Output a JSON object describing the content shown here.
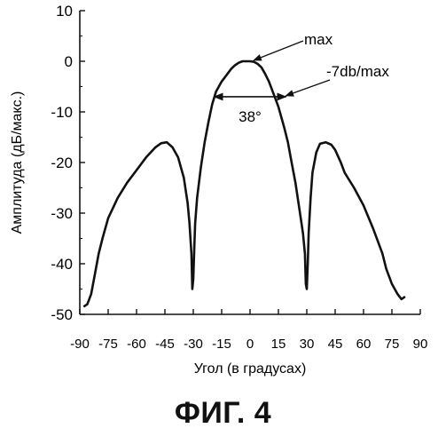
{
  "figure_label": "ФИГ. 4",
  "chart_data": {
    "type": "line",
    "xlabel": "Угол (в градусах)",
    "ylabel": "Амплитуда (дБ/макс.)",
    "xlim": [
      -90,
      90
    ],
    "ylim": [
      -50,
      10
    ],
    "xticks": [
      -90,
      -75,
      -60,
      -45,
      -30,
      -15,
      0,
      15,
      30,
      45,
      60,
      75,
      90
    ],
    "yticks": [
      10,
      0,
      -10,
      -20,
      -30,
      -40,
      -50
    ],
    "grid": false,
    "series": [
      {
        "x": [
          -88,
          -86,
          -84,
          -82,
          -80,
          -78,
          -75,
          -70,
          -65,
          -60,
          -55,
          -50,
          -47,
          -44,
          -41,
          -38,
          -35,
          -33,
          -32,
          -31,
          -30.5,
          -30,
          -29.5,
          -29,
          -28,
          -26,
          -24,
          -22,
          -20,
          -18,
          -15,
          -12,
          -10,
          -8,
          -6,
          -4,
          -2,
          0,
          2,
          4,
          6,
          8,
          10,
          12,
          15,
          18,
          20,
          22,
          24,
          26,
          28,
          29,
          29.5,
          30,
          30.5,
          31,
          32,
          33,
          35,
          37,
          40,
          43,
          45,
          48,
          50,
          55,
          60,
          65,
          70,
          72,
          75,
          78,
          80,
          82
        ],
        "y": [
          -48.5,
          -48,
          -46,
          -42,
          -38,
          -35,
          -31,
          -27,
          -24,
          -21.5,
          -19,
          -17,
          -16.2,
          -16,
          -17,
          -19,
          -23,
          -28,
          -32,
          -38,
          -45,
          -43,
          -37,
          -32,
          -27,
          -21,
          -16,
          -12,
          -8.5,
          -6,
          -4,
          -2.5,
          -1.5,
          -0.8,
          -0.3,
          0,
          0,
          0,
          -0.1,
          -0.5,
          -1.2,
          -2.5,
          -4,
          -6,
          -9,
          -13,
          -16,
          -20,
          -24,
          -29,
          -34,
          -38,
          -44,
          -45,
          -40,
          -34,
          -27,
          -22,
          -18,
          -16.3,
          -16,
          -16.5,
          -17.5,
          -20,
          -22,
          -25,
          -28.5,
          -33,
          -38,
          -41,
          -44,
          -46,
          -47,
          -46.5
        ]
      }
    ],
    "annotations": {
      "max_label": "max",
      "max_point": [
        0,
        0
      ],
      "db7_label": "-7db/max",
      "db7_point": [
        17,
        -7
      ],
      "width_label": "38°",
      "width_range": [
        -19,
        19
      ],
      "width_level": -7
    }
  }
}
